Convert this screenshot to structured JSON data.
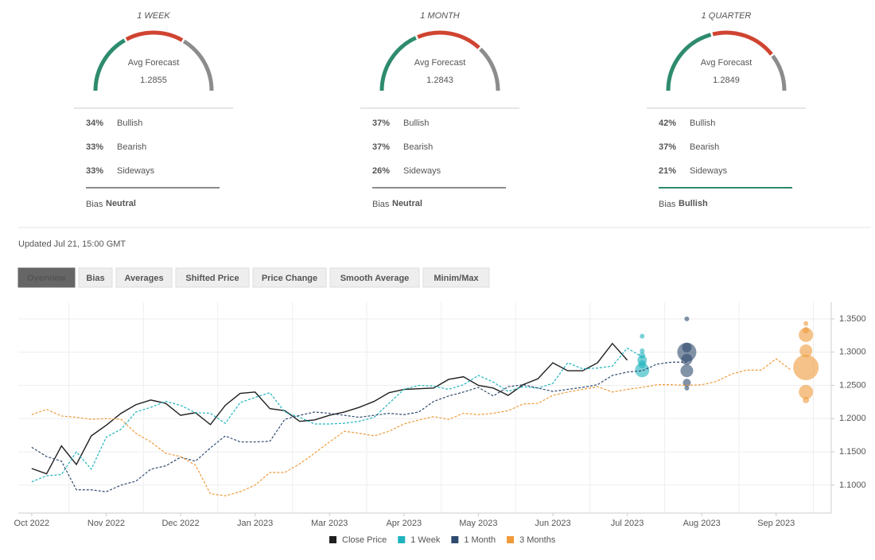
{
  "forecasts": [
    {
      "period": "1 WEEK",
      "caption": "Avg Forecast",
      "value": "1.2855",
      "rows": [
        {
          "pct": {
            "value": 34,
            "label": "34%"
          },
          "label": "Bullish",
          "color": "#2e8b6e"
        },
        {
          "pct": {
            "value": 33,
            "label": "33%"
          },
          "label": "Bearish",
          "color": "#cf4431"
        },
        {
          "pct": {
            "value": 33,
            "label": "33%"
          },
          "label": "Sideways",
          "color": "#8c8c8c"
        }
      ],
      "bias_caption": "Bias",
      "bias": "Neutral",
      "bias_color": "#8c8c8c"
    },
    {
      "period": "1 MONTH",
      "caption": "Avg Forecast",
      "value": "1.2843",
      "rows": [
        {
          "pct": {
            "value": 37,
            "label": "37%"
          },
          "label": "Bullish",
          "color": "#2e8b6e"
        },
        {
          "pct": {
            "value": 37,
            "label": "37%"
          },
          "label": "Bearish",
          "color": "#cf4431"
        },
        {
          "pct": {
            "value": 26,
            "label": "26%"
          },
          "label": "Sideways",
          "color": "#8c8c8c"
        }
      ],
      "bias_caption": "Bias",
      "bias": "Neutral",
      "bias_color": "#8c8c8c"
    },
    {
      "period": "1 QUARTER",
      "caption": "Avg Forecast",
      "value": "1.2849",
      "rows": [
        {
          "pct": {
            "value": 42,
            "label": "42%"
          },
          "label": "Bullish",
          "color": "#2e8b6e"
        },
        {
          "pct": {
            "value": 37,
            "label": "37%"
          },
          "label": "Bearish",
          "color": "#cf4431"
        },
        {
          "pct": {
            "value": 21,
            "label": "21%"
          },
          "label": "Sideways",
          "color": "#8c8c8c"
        }
      ],
      "bias_caption": "Bias",
      "bias": "Bullish",
      "bias_color": "#2e8b6e"
    }
  ],
  "updated": "Updated Jul 21, 15:00 GMT",
  "tabs": [
    "Overview",
    "Bias",
    "Averages",
    "Shifted Price",
    "Price Change",
    "Smooth Average",
    "Minim/Max"
  ],
  "active_tab": 0,
  "chart_data": {
    "type": "line",
    "x": [
      0,
      1,
      2,
      3,
      4,
      5,
      6,
      7,
      8,
      9,
      10,
      11,
      12,
      13,
      14,
      15,
      16,
      17,
      18,
      19,
      20,
      21,
      22,
      23,
      24,
      25,
      26,
      27,
      28,
      29,
      30,
      31,
      32,
      33,
      34,
      35,
      36,
      37,
      38,
      39,
      40,
      41,
      42,
      43,
      44,
      45,
      46,
      47,
      48,
      49,
      50,
      51
    ],
    "xlim": [
      -0.9,
      53.7
    ],
    "xticks": [
      {
        "value": 0,
        "label": "Oct 2022"
      },
      {
        "value": 5,
        "label": "Nov 2022"
      },
      {
        "value": 10,
        "label": "Dec 2022"
      },
      {
        "value": 15,
        "label": "Jan 2023"
      },
      {
        "value": 20,
        "label": "Mar 2023"
      },
      {
        "value": 25,
        "label": "Apr 2023"
      },
      {
        "value": 30,
        "label": "May 2023"
      },
      {
        "value": 35,
        "label": "Jun 2023"
      },
      {
        "value": 40,
        "label": "Jul 2023"
      },
      {
        "value": 45,
        "label": "Aug 2023"
      },
      {
        "value": 50,
        "label": "Sep 2023"
      }
    ],
    "ylim": [
      1.058,
      1.375
    ],
    "yticks": [
      {
        "value": 1.1,
        "label": "1.1000"
      },
      {
        "value": 1.15,
        "label": "1.1500"
      },
      {
        "value": 1.2,
        "label": "1.2000"
      },
      {
        "value": 1.25,
        "label": "1.2500"
      },
      {
        "value": 1.3,
        "label": "1.3000"
      },
      {
        "value": 1.35,
        "label": "1.3500"
      }
    ],
    "grid": true,
    "series": [
      {
        "name": "Close Price",
        "color": "#1f1f1f",
        "dashed": false,
        "values": [
          1.125,
          1.117,
          1.159,
          1.131,
          1.174,
          1.19,
          1.208,
          1.221,
          1.228,
          1.223,
          1.205,
          1.209,
          1.191,
          1.22,
          1.238,
          1.24,
          1.215,
          1.212,
          1.196,
          1.198,
          1.205,
          1.21,
          1.217,
          1.226,
          1.239,
          1.244,
          1.245,
          1.246,
          1.259,
          1.263,
          1.25,
          1.246,
          1.235,
          1.251,
          1.26,
          1.284,
          1.272,
          1.272,
          1.284,
          1.313,
          1.288,
          null,
          null,
          null,
          null,
          null,
          null,
          null,
          null,
          null,
          null,
          null
        ]
      },
      {
        "name": "1 Week",
        "color": "#1fb3be",
        "dashed": true,
        "values": [
          1.105,
          1.114,
          1.116,
          1.15,
          1.124,
          1.172,
          1.184,
          1.21,
          1.217,
          1.226,
          1.22,
          1.209,
          1.208,
          1.193,
          1.224,
          1.232,
          1.239,
          1.21,
          1.202,
          1.192,
          1.192,
          1.193,
          1.196,
          1.202,
          1.223,
          1.244,
          1.25,
          1.249,
          1.244,
          1.251,
          1.265,
          1.255,
          1.241,
          1.248,
          1.246,
          1.253,
          1.284,
          1.275,
          1.276,
          1.279,
          1.306,
          1.293,
          null,
          null,
          null,
          null,
          null,
          null,
          null,
          null,
          null,
          null
        ],
        "forecast_x": 41,
        "forecast_y": [
          1.324,
          1.302,
          1.295,
          1.288,
          1.282,
          1.273
        ],
        "forecast_size": [
          3,
          3,
          4,
          6,
          5,
          9
        ]
      },
      {
        "name": "1 Month",
        "color": "#2f4a6d",
        "dashed": true,
        "values": [
          1.157,
          1.143,
          1.136,
          1.093,
          1.093,
          1.09,
          1.1,
          1.106,
          1.124,
          1.129,
          1.142,
          1.136,
          1.156,
          1.174,
          1.165,
          1.165,
          1.166,
          1.199,
          1.205,
          1.21,
          1.208,
          1.205,
          1.202,
          1.205,
          1.208,
          1.206,
          1.21,
          1.226,
          1.234,
          1.24,
          1.247,
          1.234,
          1.248,
          1.251,
          1.246,
          1.241,
          1.244,
          1.247,
          1.251,
          1.265,
          1.27,
          1.272,
          1.282,
          1.285,
          1.285,
          null,
          null,
          null,
          null,
          null,
          null,
          null
        ],
        "forecast_x": 44,
        "forecast_y": [
          1.35,
          1.307,
          1.3,
          1.289,
          1.272,
          1.254,
          1.246
        ],
        "forecast_size": [
          3,
          6,
          12,
          7,
          8,
          5,
          3
        ]
      },
      {
        "name": "3 Months",
        "color": "#ef9a3a",
        "dashed": true,
        "values": [
          1.206,
          1.214,
          1.204,
          1.202,
          1.199,
          1.2,
          1.199,
          1.178,
          1.165,
          1.148,
          1.143,
          1.13,
          1.087,
          1.084,
          1.09,
          1.1,
          1.119,
          1.119,
          1.132,
          1.148,
          1.165,
          1.181,
          1.178,
          1.174,
          1.181,
          1.192,
          1.198,
          1.203,
          1.199,
          1.208,
          1.206,
          1.208,
          1.212,
          1.222,
          1.223,
          1.235,
          1.24,
          1.244,
          1.248,
          1.24,
          1.244,
          1.247,
          1.251,
          1.251,
          1.25,
          1.251,
          1.256,
          1.267,
          1.273,
          1.273,
          1.29,
          1.273
        ],
        "forecast_x": 52,
        "forecast_y": [
          1.343,
          1.333,
          1.326,
          1.302,
          1.277,
          1.24,
          1.228
        ],
        "forecast_size": [
          3,
          4,
          9,
          8,
          16,
          9,
          4
        ]
      }
    ]
  }
}
